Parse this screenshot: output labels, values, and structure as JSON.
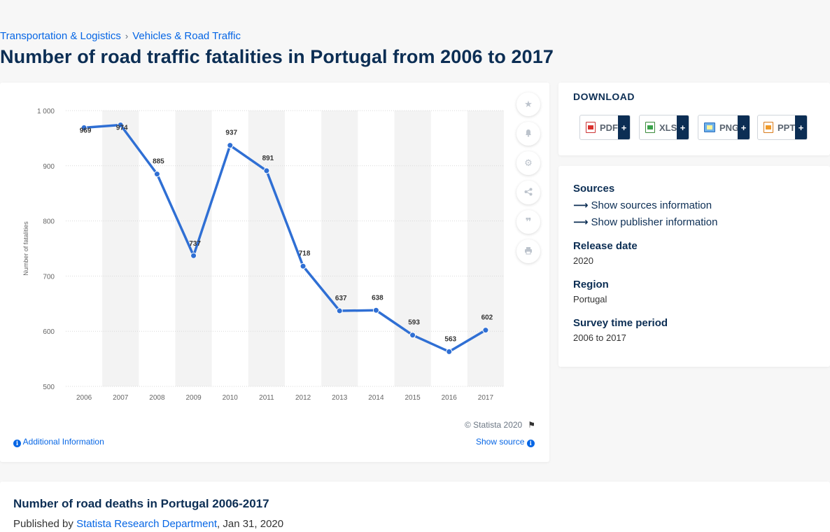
{
  "breadcrumb": {
    "items": [
      "Transportation & Logistics",
      "Vehicles & Road Traffic"
    ],
    "separator": "›"
  },
  "page_title": "Number of road traffic fatalities in Portugal from 2006 to 2017",
  "tools": {
    "icons": [
      "star-icon",
      "bell-icon",
      "gear-icon",
      "share-icon",
      "quote-icon",
      "print-icon"
    ]
  },
  "chart_footer": {
    "copyright": "© Statista 2020",
    "additional_info": "Additional Information",
    "show_source": "Show source"
  },
  "chart_data": {
    "type": "line",
    "x": [
      "2006",
      "2007",
      "2008",
      "2009",
      "2010",
      "2011",
      "2012",
      "2013",
      "2014",
      "2015",
      "2016",
      "2017"
    ],
    "series": [
      {
        "values": [
          969,
          974,
          885,
          737,
          937,
          891,
          718,
          637,
          638,
          593,
          563,
          602
        ]
      }
    ],
    "data_labels": [
      "969",
      "974",
      "885",
      "737",
      "937",
      "891",
      "718",
      "637",
      "638",
      "593",
      "563",
      "602"
    ],
    "ylabel": "Number of fatalities",
    "xlabel": "",
    "ylim": [
      500,
      1000
    ],
    "yticks": [
      500,
      600,
      700,
      800,
      900,
      1000
    ],
    "ytick_labels": [
      "500",
      "600",
      "700",
      "800",
      "900",
      "1 000"
    ],
    "grid": true,
    "line_color": "#2f6fd4",
    "band_color": "#f3f3f3"
  },
  "download": {
    "title": "DOWNLOAD",
    "buttons": [
      {
        "label": "PDF",
        "plus": "+"
      },
      {
        "label": "XLS",
        "plus": "+"
      },
      {
        "label": "PNG",
        "plus": "+"
      },
      {
        "label": "PPT",
        "plus": "+"
      }
    ]
  },
  "info": {
    "sources_label": "Sources",
    "show_sources": "Show sources information",
    "show_publisher": "Show publisher information",
    "release_date_label": "Release date",
    "release_date": "2020",
    "region_label": "Region",
    "region": "Portugal",
    "survey_label": "Survey time period",
    "survey_period": "2006 to 2017"
  },
  "bottom": {
    "title": "Number of road deaths in Portugal 2006-2017",
    "published_prefix": "Published by",
    "publisher": "Statista Research Department",
    "date": ", Jan 31, 2020"
  }
}
